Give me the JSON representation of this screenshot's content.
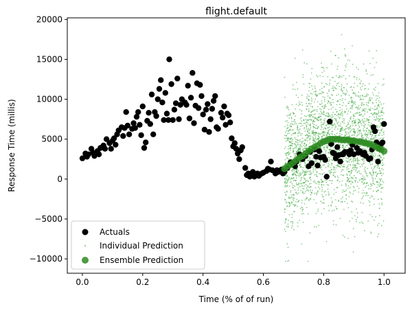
{
  "chart_data": {
    "type": "scatter",
    "title": "flight.default",
    "xlabel": "Time (% of of run)",
    "ylabel": "Response Time (millis)",
    "xlim": [
      -0.05,
      1.07
    ],
    "ylim": [
      -11800,
      20200
    ],
    "x_ticks": [
      0.0,
      0.2,
      0.4,
      0.6,
      0.8,
      1.0
    ],
    "x_tick_labels": [
      "0.0",
      "0.2",
      "0.4",
      "0.6",
      "0.8",
      "1.0"
    ],
    "y_ticks": [
      -10000,
      -5000,
      0,
      5000,
      10000,
      15000,
      20000
    ],
    "y_tick_labels": [
      "−10000",
      "−5000",
      "0",
      "5000",
      "10000",
      "15000",
      "20000"
    ],
    "grid": false,
    "legend_position": "lower-left",
    "colors": {
      "actuals": "#000000",
      "individual": "#2ca02c",
      "ensemble": "#2e8b22"
    },
    "series": [
      {
        "name": "Actuals",
        "kind": "scatter",
        "points": [
          [
            0.0,
            2600
          ],
          [
            0.01,
            3200
          ],
          [
            0.015,
            2800
          ],
          [
            0.02,
            3100
          ],
          [
            0.03,
            3800
          ],
          [
            0.035,
            3300
          ],
          [
            0.04,
            2900
          ],
          [
            0.05,
            3500
          ],
          [
            0.055,
            3100
          ],
          [
            0.06,
            3900
          ],
          [
            0.07,
            4200
          ],
          [
            0.075,
            3800
          ],
          [
            0.08,
            5000
          ],
          [
            0.09,
            4500
          ],
          [
            0.095,
            3800
          ],
          [
            0.1,
            4800
          ],
          [
            0.105,
            5100
          ],
          [
            0.11,
            4300
          ],
          [
            0.115,
            5600
          ],
          [
            0.12,
            6100
          ],
          [
            0.13,
            6500
          ],
          [
            0.135,
            5400
          ],
          [
            0.14,
            6400
          ],
          [
            0.145,
            8400
          ],
          [
            0.15,
            6700
          ],
          [
            0.155,
            5600
          ],
          [
            0.165,
            6300
          ],
          [
            0.17,
            7000
          ],
          [
            0.175,
            6400
          ],
          [
            0.18,
            7800
          ],
          [
            0.185,
            8400
          ],
          [
            0.19,
            6800
          ],
          [
            0.195,
            5500
          ],
          [
            0.2,
            9100
          ],
          [
            0.205,
            3900
          ],
          [
            0.21,
            4600
          ],
          [
            0.215,
            7300
          ],
          [
            0.22,
            8300
          ],
          [
            0.225,
            6900
          ],
          [
            0.23,
            10600
          ],
          [
            0.235,
            5600
          ],
          [
            0.24,
            8400
          ],
          [
            0.245,
            7900
          ],
          [
            0.25,
            10000
          ],
          [
            0.255,
            11300
          ],
          [
            0.26,
            12400
          ],
          [
            0.265,
            9600
          ],
          [
            0.27,
            7400
          ],
          [
            0.275,
            10800
          ],
          [
            0.28,
            8200
          ],
          [
            0.285,
            7400
          ],
          [
            0.288,
            15000
          ],
          [
            0.295,
            11900
          ],
          [
            0.3,
            7400
          ],
          [
            0.305,
            8700
          ],
          [
            0.31,
            9500
          ],
          [
            0.315,
            12600
          ],
          [
            0.32,
            7500
          ],
          [
            0.325,
            9300
          ],
          [
            0.33,
            10000
          ],
          [
            0.34,
            9600
          ],
          [
            0.345,
            9300
          ],
          [
            0.35,
            11700
          ],
          [
            0.355,
            7600
          ],
          [
            0.36,
            10200
          ],
          [
            0.365,
            13300
          ],
          [
            0.37,
            7000
          ],
          [
            0.375,
            9200
          ],
          [
            0.38,
            12000
          ],
          [
            0.385,
            8900
          ],
          [
            0.39,
            11800
          ],
          [
            0.395,
            10400
          ],
          [
            0.4,
            8100
          ],
          [
            0.405,
            6200
          ],
          [
            0.41,
            8700
          ],
          [
            0.415,
            9400
          ],
          [
            0.42,
            5900
          ],
          [
            0.425,
            7500
          ],
          [
            0.43,
            8800
          ],
          [
            0.435,
            9800
          ],
          [
            0.44,
            10400
          ],
          [
            0.445,
            6500
          ],
          [
            0.45,
            6300
          ],
          [
            0.46,
            8300
          ],
          [
            0.465,
            7700
          ],
          [
            0.47,
            9100
          ],
          [
            0.475,
            6800
          ],
          [
            0.48,
            8200
          ],
          [
            0.485,
            8000
          ],
          [
            0.49,
            7100
          ],
          [
            0.495,
            5100
          ],
          [
            0.5,
            4100
          ],
          [
            0.505,
            4500
          ],
          [
            0.51,
            3800
          ],
          [
            0.515,
            3200
          ],
          [
            0.52,
            2500
          ],
          [
            0.525,
            3600
          ],
          [
            0.53,
            4000
          ],
          [
            0.54,
            1400
          ],
          [
            0.545,
            500
          ],
          [
            0.55,
            700
          ],
          [
            0.555,
            300
          ],
          [
            0.56,
            600
          ],
          [
            0.565,
            900
          ],
          [
            0.57,
            300
          ],
          [
            0.575,
            500
          ],
          [
            0.58,
            700
          ],
          [
            0.585,
            400
          ],
          [
            0.59,
            600
          ],
          [
            0.595,
            700
          ],
          [
            0.6,
            800
          ],
          [
            0.61,
            1000
          ],
          [
            0.615,
            1300
          ],
          [
            0.62,
            1200
          ],
          [
            0.625,
            2200
          ],
          [
            0.63,
            1100
          ],
          [
            0.64,
            700
          ],
          [
            0.645,
            1100
          ],
          [
            0.65,
            900
          ],
          [
            0.66,
            1200
          ],
          [
            0.665,
            700
          ],
          [
            0.67,
            900
          ],
          [
            0.68,
            1400
          ],
          [
            0.69,
            2100
          ],
          [
            0.7,
            1800
          ],
          [
            0.705,
            1600
          ],
          [
            0.71,
            2200
          ],
          [
            0.72,
            3100
          ],
          [
            0.73,
            2500
          ],
          [
            0.74,
            2900
          ],
          [
            0.75,
            1600
          ],
          [
            0.755,
            3400
          ],
          [
            0.76,
            2000
          ],
          [
            0.77,
            3700
          ],
          [
            0.775,
            2800
          ],
          [
            0.78,
            1700
          ],
          [
            0.785,
            3500
          ],
          [
            0.79,
            2700
          ],
          [
            0.8,
            2800
          ],
          [
            0.805,
            2400
          ],
          [
            0.81,
            300
          ],
          [
            0.82,
            7200
          ],
          [
            0.825,
            4400
          ],
          [
            0.83,
            3300
          ],
          [
            0.835,
            3200
          ],
          [
            0.84,
            2600
          ],
          [
            0.845,
            4000
          ],
          [
            0.85,
            3000
          ],
          [
            0.855,
            2200
          ],
          [
            0.86,
            3100
          ],
          [
            0.865,
            3100
          ],
          [
            0.87,
            3400
          ],
          [
            0.88,
            3400
          ],
          [
            0.885,
            3100
          ],
          [
            0.89,
            3600
          ],
          [
            0.895,
            4300
          ],
          [
            0.9,
            3100
          ],
          [
            0.91,
            3900
          ],
          [
            0.915,
            3300
          ],
          [
            0.92,
            3500
          ],
          [
            0.93,
            3100
          ],
          [
            0.935,
            3300
          ],
          [
            0.94,
            2900
          ],
          [
            0.95,
            2500
          ],
          [
            0.955,
            2600
          ],
          [
            0.96,
            3700
          ],
          [
            0.965,
            6500
          ],
          [
            0.97,
            6000
          ],
          [
            0.975,
            4600
          ],
          [
            0.98,
            2200
          ],
          [
            0.985,
            3800
          ],
          [
            0.99,
            4400
          ],
          [
            0.995,
            4600
          ],
          [
            1.0,
            6900
          ]
        ]
      },
      {
        "name": "Individual Prediction",
        "kind": "scatter-dense",
        "x_range": [
          0.67,
          1.0
        ],
        "y_spread_approx": [
          -10300,
          18700
        ]
      },
      {
        "name": "Ensemble Prediction",
        "kind": "scatter",
        "points": [
          [
            0.67,
            1300
          ],
          [
            0.68,
            1600
          ],
          [
            0.69,
            1800
          ],
          [
            0.7,
            2100
          ],
          [
            0.71,
            2400
          ],
          [
            0.72,
            2700
          ],
          [
            0.73,
            2900
          ],
          [
            0.74,
            3200
          ],
          [
            0.75,
            3500
          ],
          [
            0.76,
            3800
          ],
          [
            0.77,
            4000
          ],
          [
            0.78,
            4200
          ],
          [
            0.79,
            4500
          ],
          [
            0.8,
            4700
          ],
          [
            0.81,
            4800
          ],
          [
            0.82,
            5000
          ],
          [
            0.83,
            5000
          ],
          [
            0.84,
            5000
          ],
          [
            0.85,
            5000
          ],
          [
            0.86,
            4900
          ],
          [
            0.87,
            4900
          ],
          [
            0.88,
            4900
          ],
          [
            0.89,
            4800
          ],
          [
            0.9,
            4800
          ],
          [
            0.91,
            4700
          ],
          [
            0.92,
            4700
          ],
          [
            0.93,
            4600
          ],
          [
            0.94,
            4500
          ],
          [
            0.95,
            4400
          ],
          [
            0.96,
            4300
          ],
          [
            0.97,
            4100
          ],
          [
            0.98,
            3900
          ],
          [
            0.99,
            3700
          ],
          [
            1.0,
            3500
          ]
        ]
      }
    ],
    "legend": [
      "Actuals",
      "Individual Prediction",
      "Ensemble Prediction"
    ]
  }
}
